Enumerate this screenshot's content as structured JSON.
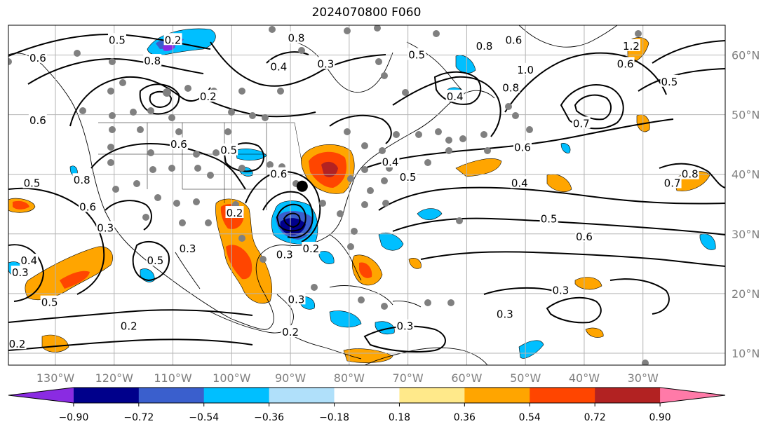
{
  "title": "2024070800 F060",
  "map": {
    "lon_range": [
      -138,
      -16
    ],
    "lat_range": [
      8,
      65
    ],
    "lon_ticks": [
      -130,
      -120,
      -110,
      -100,
      -90,
      -80,
      -70,
      -60,
      -50,
      -40,
      -30
    ],
    "lat_ticks": [
      10,
      20,
      30,
      40,
      50,
      60
    ],
    "lon_labels": [
      "130°W",
      "120°W",
      "110°W",
      "100°W",
      "90°W",
      "80°W",
      "70°W",
      "60°W",
      "50°W",
      "40°W",
      "30°W"
    ],
    "lat_labels": [
      "10°N",
      "20°N",
      "30°N",
      "40°N",
      "50°N",
      "60°N"
    ],
    "grid": true,
    "marker": {
      "lon": -88,
      "lat": 38,
      "color": "#000000"
    }
  },
  "contour_labels": [
    {
      "text": "0.5",
      "lon": -119.5,
      "lat": 62.5
    },
    {
      "text": "0.6",
      "lon": -133,
      "lat": 59.5
    },
    {
      "text": "0.2",
      "lon": -110,
      "lat": 62.5
    },
    {
      "text": "0.8",
      "lon": -113.5,
      "lat": 59
    },
    {
      "text": "0.8",
      "lon": -89,
      "lat": 62.8
    },
    {
      "text": "0.4",
      "lon": -92,
      "lat": 58
    },
    {
      "text": "0.3",
      "lon": -84,
      "lat": 58.5
    },
    {
      "text": "0.5",
      "lon": -68.5,
      "lat": 60
    },
    {
      "text": "0.8",
      "lon": -57,
      "lat": 61.5
    },
    {
      "text": "0.6",
      "lon": -52,
      "lat": 62.5
    },
    {
      "text": "1.0",
      "lon": -50,
      "lat": 57.5
    },
    {
      "text": "0.8",
      "lon": -52.5,
      "lat": 54.5
    },
    {
      "text": "1.2",
      "lon": -32,
      "lat": 61.5
    },
    {
      "text": "0.6",
      "lon": -33,
      "lat": 58.5
    },
    {
      "text": "0.5",
      "lon": -25.5,
      "lat": 55.5
    },
    {
      "text": "0.4",
      "lon": -62,
      "lat": 53
    },
    {
      "text": "0.6",
      "lon": -133,
      "lat": 49
    },
    {
      "text": "0.2",
      "lon": -104,
      "lat": 53
    },
    {
      "text": "0.6",
      "lon": -109,
      "lat": 45
    },
    {
      "text": "0.5",
      "lon": -100.5,
      "lat": 44
    },
    {
      "text": "0.7",
      "lon": -40.5,
      "lat": 48.5
    },
    {
      "text": "0.6",
      "lon": -50.5,
      "lat": 44.5
    },
    {
      "text": "0.4",
      "lon": -73,
      "lat": 42
    },
    {
      "text": "0.5",
      "lon": -70,
      "lat": 39.5
    },
    {
      "text": "0.4",
      "lon": -51,
      "lat": 38.5
    },
    {
      "text": "0.6",
      "lon": -92,
      "lat": 40
    },
    {
      "text": "0.5",
      "lon": -134,
      "lat": 38.5
    },
    {
      "text": "0.8",
      "lon": -22,
      "lat": 40
    },
    {
      "text": "0.7",
      "lon": -25,
      "lat": 38.5
    },
    {
      "text": "0.8",
      "lon": -125.5,
      "lat": 39
    },
    {
      "text": "0.6",
      "lon": -124.5,
      "lat": 34.5
    },
    {
      "text": "0.3",
      "lon": -121.5,
      "lat": 31
    },
    {
      "text": "0.2",
      "lon": -99.5,
      "lat": 33.5
    },
    {
      "text": "0.3",
      "lon": -107.5,
      "lat": 27.5
    },
    {
      "text": "0.5",
      "lon": -46,
      "lat": 32.5
    },
    {
      "text": "0.6",
      "lon": -40,
      "lat": 29.5
    },
    {
      "text": "0.2",
      "lon": -86.5,
      "lat": 27.5
    },
    {
      "text": "0.3",
      "lon": -91,
      "lat": 26.5
    },
    {
      "text": "0.4",
      "lon": -134.5,
      "lat": 25.5
    },
    {
      "text": "0.5",
      "lon": -113,
      "lat": 25.5
    },
    {
      "text": "0.3",
      "lon": -136,
      "lat": 23.5
    },
    {
      "text": "0.5",
      "lon": -131,
      "lat": 18.5
    },
    {
      "text": "0.3",
      "lon": -44,
      "lat": 20.5
    },
    {
      "text": "0.3",
      "lon": -89,
      "lat": 19
    },
    {
      "text": "0.3",
      "lon": -53.5,
      "lat": 16.5
    },
    {
      "text": "0.3",
      "lon": -70.5,
      "lat": 14.5
    },
    {
      "text": "0.2",
      "lon": -117.5,
      "lat": 14.5
    },
    {
      "text": "0.2",
      "lon": -90,
      "lat": 13.5
    },
    {
      "text": "0.2",
      "lon": -136.5,
      "lat": 11.5
    }
  ],
  "colorbar": {
    "colors": [
      "#8a2be2",
      "#00008b",
      "#3a5fcd",
      "#00bfff",
      "#b0e0fa",
      "#ffffff",
      "#ffe98a",
      "#ffa500",
      "#ff4500",
      "#b22222",
      "#ff7aa8"
    ],
    "tick_labels": [
      "−0.90",
      "−0.72",
      "−0.54",
      "−0.36",
      "−0.18",
      "0.18",
      "0.36",
      "0.54",
      "0.72",
      "0.90"
    ],
    "extend": "both"
  }
}
